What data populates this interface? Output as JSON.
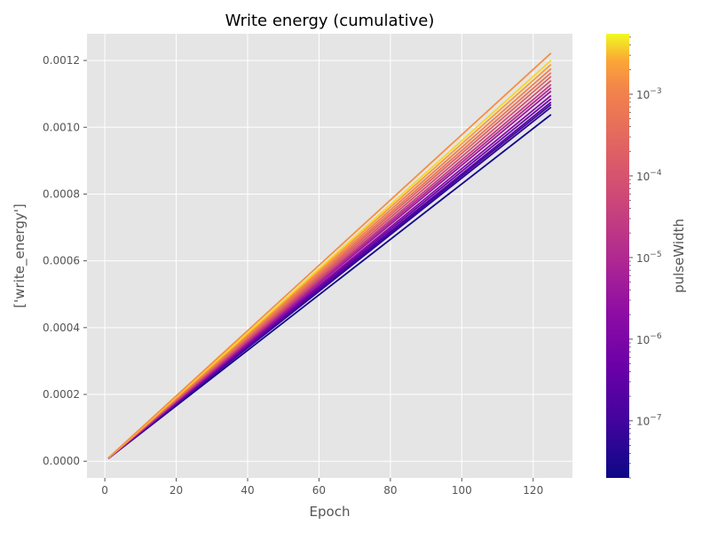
{
  "chart_data": {
    "type": "line",
    "title": "Write energy (cumulative)",
    "xlabel": "Epoch",
    "ylabel": "['write_energy']",
    "xlim": [
      -5,
      131
    ],
    "ylim": [
      -5e-05,
      0.00128
    ],
    "x_ticks": [
      0,
      20,
      40,
      60,
      80,
      100,
      120
    ],
    "y_ticks": [
      0.0,
      0.0002,
      0.0004,
      0.0006,
      0.0008,
      0.001,
      0.0012
    ],
    "y_tick_labels": [
      "0.0000",
      "0.0002",
      "0.0004",
      "0.0006",
      "0.0008",
      "0.0010",
      "0.0012"
    ],
    "grid": true,
    "style": "ggplot",
    "colormap": "plasma",
    "colorbar": {
      "label": "pulseWidth",
      "scale": "log",
      "range": [
        2e-08,
        0.0055
      ],
      "major_ticks": [
        {
          "value": 1e-07,
          "base": "10",
          "exp": "−7"
        },
        {
          "value": 1e-06,
          "base": "10",
          "exp": "−6"
        },
        {
          "value": 1e-05,
          "base": "10",
          "exp": "−5"
        },
        {
          "value": 0.0001,
          "base": "10",
          "exp": "−4"
        },
        {
          "value": 0.001,
          "base": "10",
          "exp": "−3"
        }
      ]
    },
    "series": [
      {
        "pulseWidth": 2.5e-08,
        "x": [
          1,
          125
        ],
        "y": [
          8.2e-06,
          0.001038
        ]
      },
      {
        "pulseWidth": 5e-08,
        "x": [
          1,
          125
        ],
        "y": [
          8.4e-06,
          0.00106
        ]
      },
      {
        "pulseWidth": 1e-07,
        "x": [
          1,
          125
        ],
        "y": [
          8.5e-06,
          0.001068
        ]
      },
      {
        "pulseWidth": 2e-07,
        "x": [
          1,
          125
        ],
        "y": [
          8.6e-06,
          0.001075
        ]
      },
      {
        "pulseWidth": 5e-07,
        "x": [
          1,
          125
        ],
        "y": [
          8.7e-06,
          0.001085
        ]
      },
      {
        "pulseWidth": 1.5e-06,
        "x": [
          1,
          125
        ],
        "y": [
          8.8e-06,
          0.001095
        ]
      },
      {
        "pulseWidth": 4e-06,
        "x": [
          1,
          125
        ],
        "y": [
          8.9e-06,
          0.001108
        ]
      },
      {
        "pulseWidth": 1e-05,
        "x": [
          1,
          125
        ],
        "y": [
          9e-06,
          0.001118
        ]
      },
      {
        "pulseWidth": 3e-05,
        "x": [
          1,
          125
        ],
        "y": [
          9.1e-06,
          0.001128
        ]
      },
      {
        "pulseWidth": 8e-05,
        "x": [
          1,
          125
        ],
        "y": [
          9.2e-06,
          0.00114
        ]
      },
      {
        "pulseWidth": 0.0002,
        "x": [
          1,
          125
        ],
        "y": [
          9.3e-06,
          0.001152
        ]
      },
      {
        "pulseWidth": 0.0005,
        "x": [
          1,
          125
        ],
        "y": [
          9.4e-06,
          0.001163
        ]
      },
      {
        "pulseWidth": 0.001,
        "x": [
          1,
          125
        ],
        "y": [
          9.5e-06,
          0.001175
        ]
      },
      {
        "pulseWidth": 0.002,
        "x": [
          1,
          125
        ],
        "y": [
          9.6e-06,
          0.001188
        ]
      },
      {
        "pulseWidth": 0.004,
        "x": [
          1,
          125
        ],
        "y": [
          9.7e-06,
          0.0012
        ]
      },
      {
        "pulseWidth": 0.0015,
        "x": [
          1,
          125
        ],
        "y": [
          9.8e-06,
          0.001222
        ]
      }
    ]
  }
}
